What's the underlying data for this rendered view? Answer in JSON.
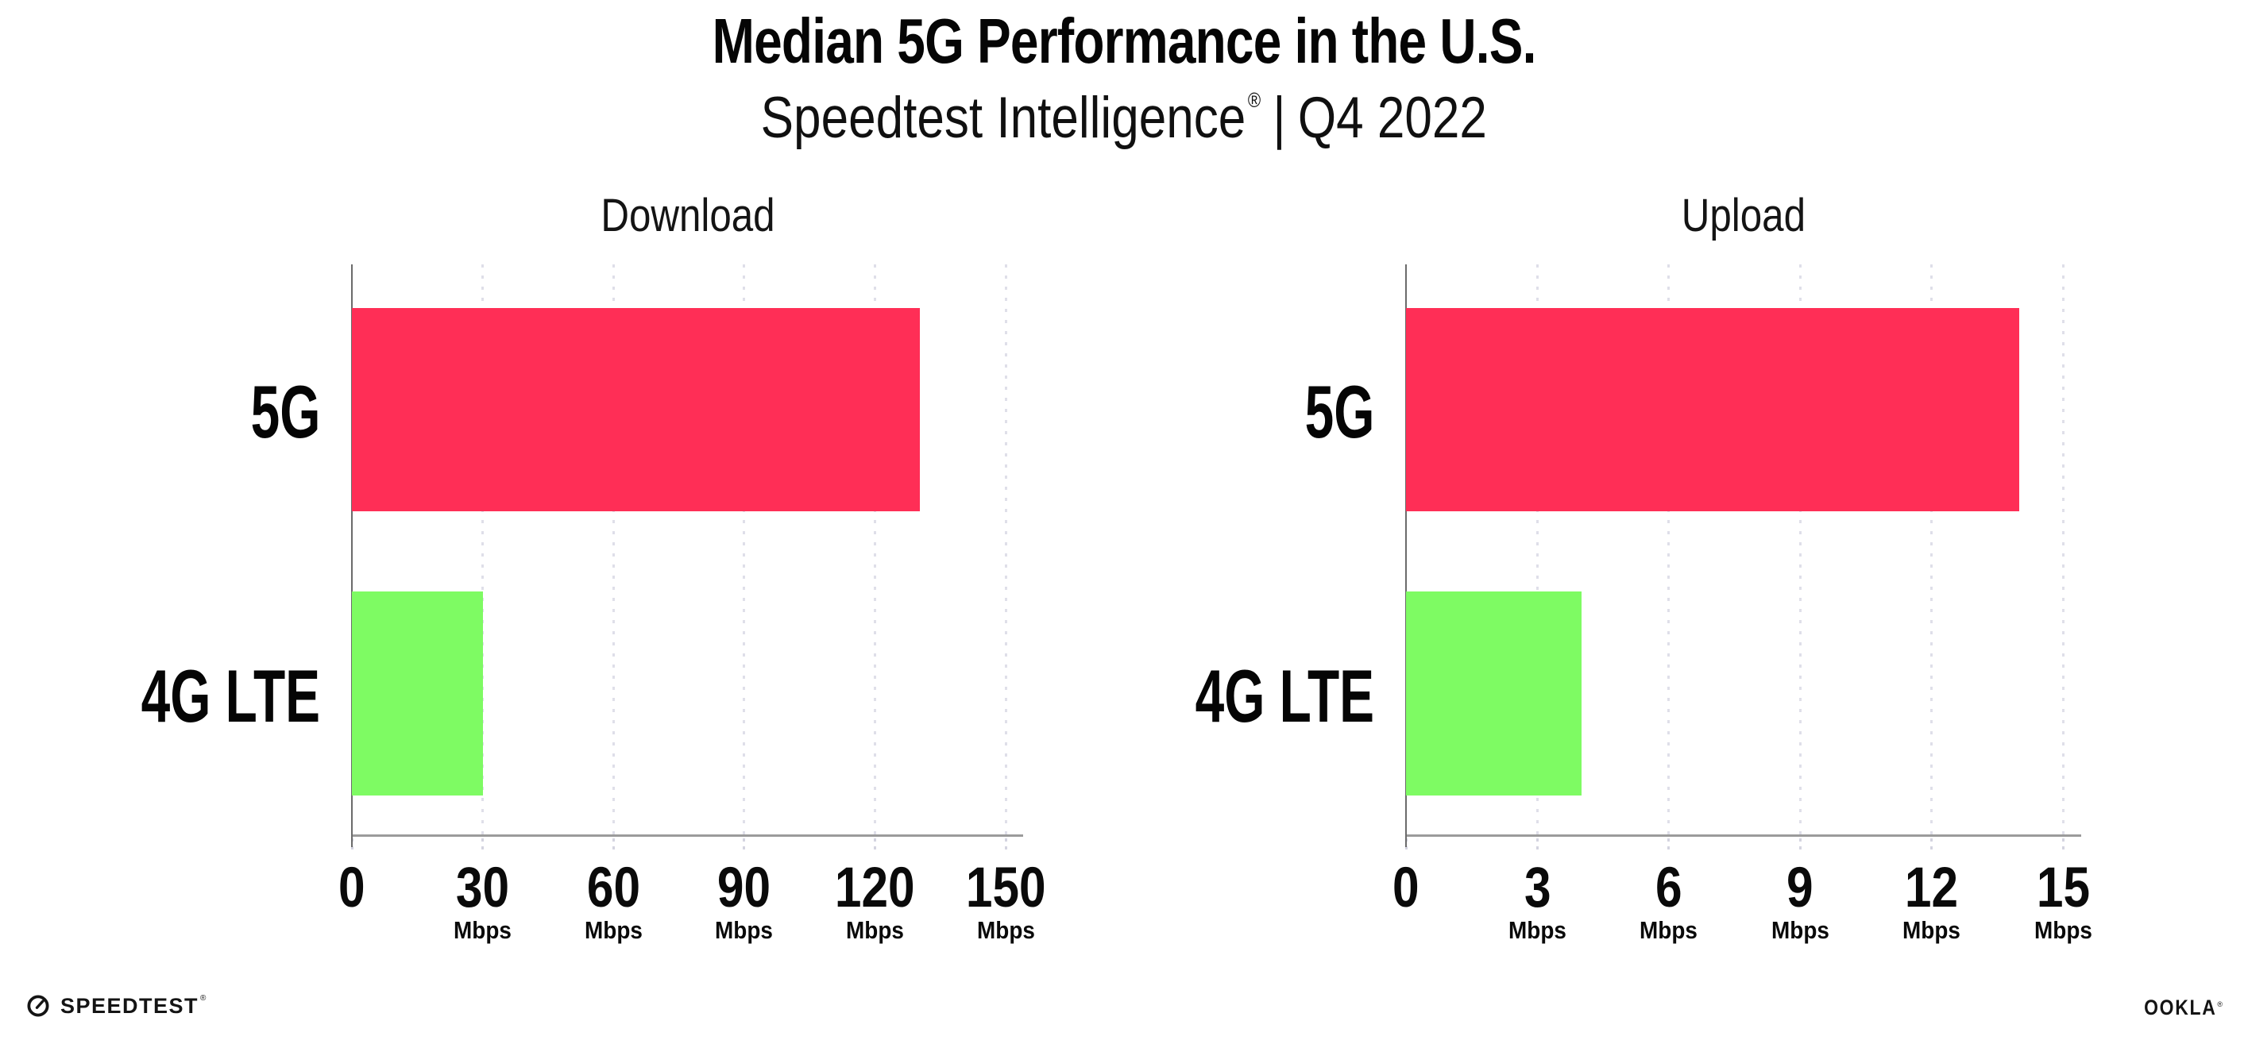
{
  "header": {
    "title": "Median 5G Performance in the U.S.",
    "subtitle": {
      "brand": "Speedtest Intelligence",
      "registered_mark": "®",
      "separator": "|",
      "period": "Q4 2022"
    }
  },
  "chart_data": [
    {
      "type": "bar",
      "orientation": "horizontal",
      "title": "Download",
      "categories": [
        "5G",
        "4G LTE"
      ],
      "values": [
        130.4,
        30.1
      ],
      "unit": "Mbps",
      "xlim": [
        0,
        150
      ],
      "xticks": [
        0,
        30,
        60,
        90,
        120,
        150
      ],
      "bar_colors": [
        "#ff2e56",
        "#7efb63"
      ],
      "grid": "dotted-vertical-gridlines",
      "legend": "none",
      "note": "values estimated from bar lengths; no numeric data labels shown"
    },
    {
      "type": "bar",
      "orientation": "horizontal",
      "title": "Upload",
      "categories": [
        "5G",
        "4G LTE"
      ],
      "values": [
        14.0,
        4.0
      ],
      "unit": "Mbps",
      "xlim": [
        0,
        15
      ],
      "xticks": [
        0,
        3,
        6,
        9,
        12,
        15
      ],
      "bar_colors": [
        "#ff2e56",
        "#7efb63"
      ],
      "grid": "dotted-vertical-gridlines",
      "legend": "none",
      "note": "values estimated from bar lengths; no numeric data labels shown"
    }
  ],
  "colors": {
    "bar_5g": "#ff2e56",
    "bar_4g_lte": "#7efb63",
    "x_axis_line": "#9b9b9b",
    "y_axis_line": "#6b6b6b",
    "grid_dots": "#dfdfe9",
    "text": "#0f0f0f",
    "background": "#ffffff"
  },
  "footer": {
    "speedtest_logo_text": "SPEEDTEST",
    "speedtest_mark": "®",
    "ookla_logo_text": "OOKLA",
    "ookla_mark": "®"
  }
}
